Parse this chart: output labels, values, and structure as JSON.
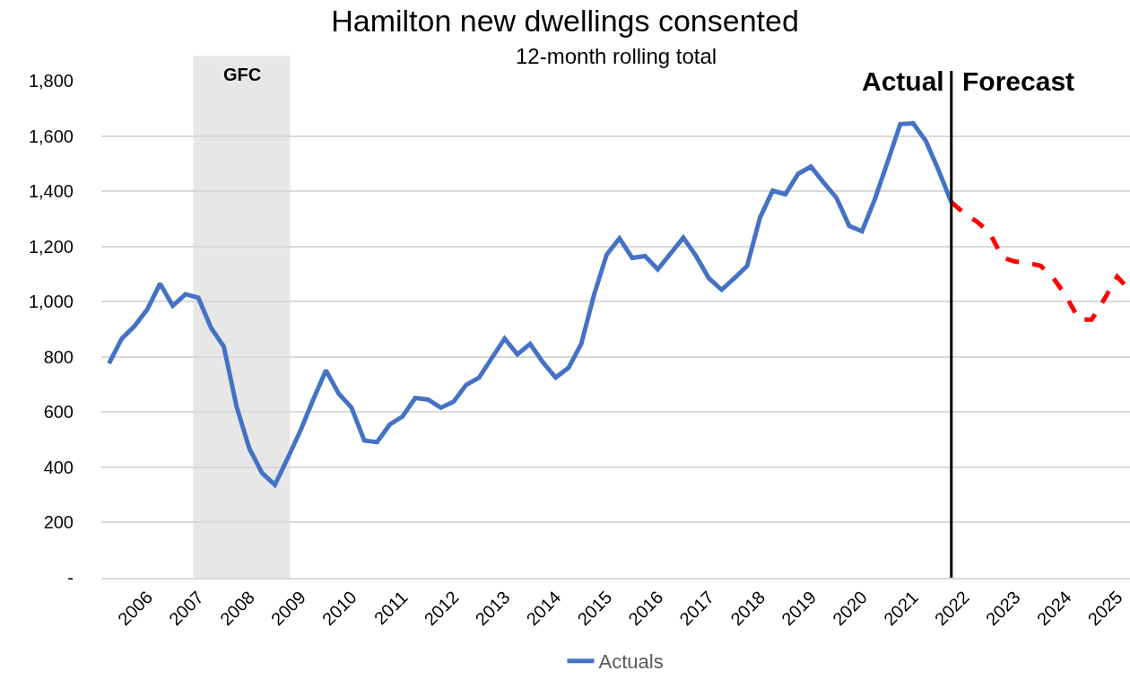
{
  "chart_data": {
    "type": "line",
    "title": "Hamilton new dwellings consented",
    "subtitle": "12-month rolling total",
    "series": [
      {
        "name": "Actuals",
        "color": "#4472c4",
        "line_style": "solid",
        "x": [
          2005.25,
          2005.5,
          2005.75,
          2006,
          2006.25,
          2006.5,
          2006.75,
          2007,
          2007.25,
          2007.5,
          2007.75,
          2008,
          2008.25,
          2008.5,
          2008.75,
          2009,
          2009.25,
          2009.5,
          2009.75,
          2010,
          2010.25,
          2010.5,
          2010.75,
          2011,
          2011.25,
          2011.5,
          2011.75,
          2012,
          2012.25,
          2012.5,
          2012.75,
          2013,
          2013.25,
          2013.5,
          2013.75,
          2014,
          2014.25,
          2014.5,
          2014.75,
          2015,
          2015.25,
          2015.5,
          2015.75,
          2016,
          2016.25,
          2016.5,
          2016.75,
          2017,
          2017.25,
          2017.5,
          2017.75,
          2018,
          2018.25,
          2018.5,
          2018.75,
          2019,
          2019.25,
          2019.5,
          2019.75,
          2020,
          2020.25,
          2020.5,
          2020.75,
          2021,
          2021.25,
          2021.5,
          2021.75
        ],
        "values": [
          776,
          866,
          911,
          972,
          1065,
          985,
          1027,
          1014,
          905,
          837,
          619,
          468,
          379,
          337,
          433,
          533,
          645,
          751,
          667,
          616,
          497,
          491,
          555,
          584,
          651,
          645,
          616,
          638,
          699,
          725,
          796,
          866,
          809,
          847,
          780,
          725,
          760,
          847,
          1024,
          1171,
          1229,
          1158,
          1165,
          1117,
          1174,
          1232,
          1165,
          1085,
          1043,
          1085,
          1129,
          1303,
          1402,
          1389,
          1463,
          1489,
          1431,
          1376,
          1274,
          1255,
          1370,
          1505,
          1643,
          1646,
          1582,
          1476,
          1360
        ]
      },
      {
        "color": "#ff0000",
        "line_style": "dashed",
        "x": [
          2021.75,
          2022,
          2022.25,
          2022.5,
          2022.75,
          2023,
          2023.25,
          2023.5,
          2023.75,
          2024,
          2024.25,
          2024.5,
          2024.75,
          2025,
          2025.25
        ],
        "values": [
          1360,
          1320,
          1290,
          1250,
          1160,
          1145,
          1140,
          1130,
          1085,
          1020,
          935,
          935,
          1010,
          1090,
          1040
        ]
      }
    ],
    "xlim": [
      2005.1,
      2025.25
    ],
    "xticks": [
      2006,
      2007,
      2008,
      2009,
      2010,
      2011,
      2012,
      2013,
      2014,
      2015,
      2016,
      2017,
      2018,
      2019,
      2020,
      2021,
      2022,
      2023,
      2024,
      2025
    ],
    "ylim": [
      0,
      1800
    ],
    "yticks": [
      {
        "value": 0,
        "label": "-"
      },
      200,
      400,
      600,
      800,
      {
        "value": 1000,
        "label": "1,000"
      },
      {
        "value": 1200,
        "label": "1,200"
      },
      {
        "value": 1400,
        "label": "1,400"
      },
      {
        "value": 1600,
        "label": "1,600"
      },
      {
        "value": 1800,
        "label": "1,800"
      }
    ],
    "grid": "y",
    "legend": "bottom",
    "marker": "none",
    "ref_lines": [
      {
        "axis": "x",
        "value": 2021.75,
        "color": "#000000"
      }
    ],
    "bands": [
      {
        "axis": "x",
        "from": 2006.9,
        "to": 2008.8,
        "label": "GFC",
        "color": "#e7e7e7"
      }
    ],
    "annotations": [
      "Actual",
      "Forecast"
    ]
  }
}
